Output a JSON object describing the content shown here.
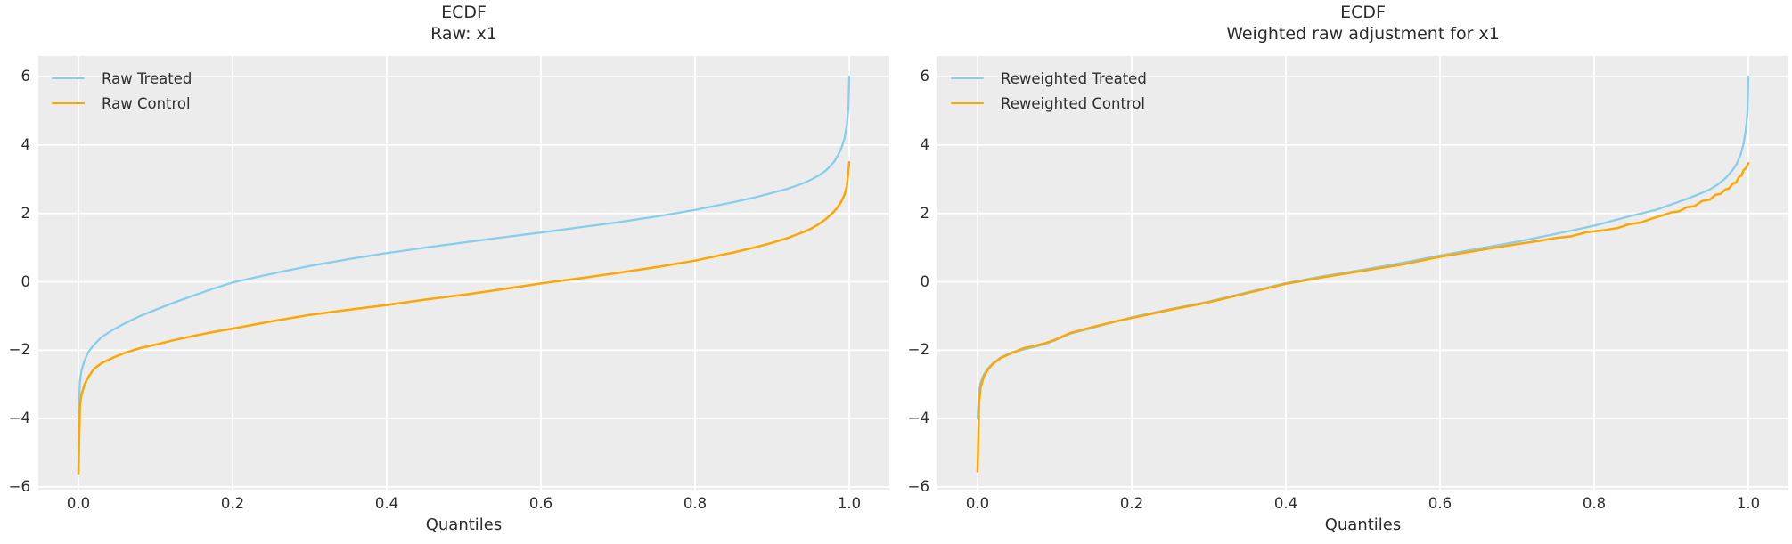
{
  "figure": {
    "background": "#ffffff",
    "axes_background": "#ececec",
    "grid_color": "#ffffff",
    "text_color": "#2e2e2e",
    "treated_color": "#87ceeb",
    "control_color": "#ffa500"
  },
  "chart_data": [
    {
      "type": "line",
      "title": "ECDF",
      "subtitle": "Raw: x1",
      "xlabel": "Quantiles",
      "grid": true,
      "legend_position": "upper left",
      "xlim": [
        -0.052,
        1.052
      ],
      "ylim": [
        -6.08,
        6.6
      ],
      "x_ticks": [
        {
          "value": 0.0,
          "label": "0.0"
        },
        {
          "value": 0.2,
          "label": "0.2"
        },
        {
          "value": 0.4,
          "label": "0.4"
        },
        {
          "value": 0.6,
          "label": "0.6"
        },
        {
          "value": 0.8,
          "label": "0.8"
        },
        {
          "value": 1.0,
          "label": "1.0"
        }
      ],
      "y_ticks": [
        {
          "value": 6,
          "label": "6"
        },
        {
          "value": 4,
          "label": "4"
        },
        {
          "value": 2,
          "label": "2"
        },
        {
          "value": 0,
          "label": "0"
        },
        {
          "value": -2,
          "label": "−2"
        },
        {
          "value": -4,
          "label": "−4"
        },
        {
          "value": -6,
          "label": "−6"
        }
      ],
      "series": [
        {
          "name": "Raw Treated",
          "color": "#87ceeb",
          "points": [
            [
              0,
              -4.0
            ],
            [
              0.002,
              -2.9
            ],
            [
              0.004,
              -2.6
            ],
            [
              0.008,
              -2.3
            ],
            [
              0.013,
              -2.05
            ],
            [
              0.02,
              -1.85
            ],
            [
              0.03,
              -1.62
            ],
            [
              0.045,
              -1.4
            ],
            [
              0.06,
              -1.22
            ],
            [
              0.08,
              -1.0
            ],
            [
              0.1,
              -0.82
            ],
            [
              0.125,
              -0.6
            ],
            [
              0.15,
              -0.4
            ],
            [
              0.175,
              -0.2
            ],
            [
              0.2,
              -0.02
            ],
            [
              0.23,
              0.13
            ],
            [
              0.26,
              0.28
            ],
            [
              0.3,
              0.46
            ],
            [
              0.35,
              0.66
            ],
            [
              0.4,
              0.84
            ],
            [
              0.45,
              1.0
            ],
            [
              0.5,
              1.15
            ],
            [
              0.55,
              1.3
            ],
            [
              0.6,
              1.44
            ],
            [
              0.65,
              1.59
            ],
            [
              0.7,
              1.74
            ],
            [
              0.75,
              1.91
            ],
            [
              0.8,
              2.1
            ],
            [
              0.85,
              2.33
            ],
            [
              0.88,
              2.48
            ],
            [
              0.9,
              2.6
            ],
            [
              0.92,
              2.72
            ],
            [
              0.94,
              2.88
            ],
            [
              0.95,
              2.98
            ],
            [
              0.96,
              3.1
            ],
            [
              0.97,
              3.26
            ],
            [
              0.98,
              3.5
            ],
            [
              0.985,
              3.68
            ],
            [
              0.99,
              3.92
            ],
            [
              0.994,
              4.2
            ],
            [
              0.997,
              4.6
            ],
            [
              0.999,
              5.1
            ],
            [
              1.0,
              6.0
            ]
          ]
        },
        {
          "name": "Raw Control",
          "color": "#ffa500",
          "points": [
            [
              0,
              -5.6
            ],
            [
              0.002,
              -3.6
            ],
            [
              0.004,
              -3.3
            ],
            [
              0.008,
              -3.0
            ],
            [
              0.013,
              -2.78
            ],
            [
              0.02,
              -2.55
            ],
            [
              0.03,
              -2.38
            ],
            [
              0.045,
              -2.22
            ],
            [
              0.06,
              -2.08
            ],
            [
              0.08,
              -1.94
            ],
            [
              0.1,
              -1.84
            ],
            [
              0.125,
              -1.7
            ],
            [
              0.15,
              -1.58
            ],
            [
              0.175,
              -1.47
            ],
            [
              0.2,
              -1.37
            ],
            [
              0.25,
              -1.16
            ],
            [
              0.3,
              -0.97
            ],
            [
              0.35,
              -0.82
            ],
            [
              0.4,
              -0.68
            ],
            [
              0.45,
              -0.52
            ],
            [
              0.5,
              -0.38
            ],
            [
              0.55,
              -0.22
            ],
            [
              0.6,
              -0.05
            ],
            [
              0.65,
              0.1
            ],
            [
              0.7,
              0.26
            ],
            [
              0.75,
              0.43
            ],
            [
              0.8,
              0.62
            ],
            [
              0.85,
              0.86
            ],
            [
              0.88,
              1.02
            ],
            [
              0.9,
              1.14
            ],
            [
              0.92,
              1.28
            ],
            [
              0.94,
              1.45
            ],
            [
              0.95,
              1.55
            ],
            [
              0.96,
              1.68
            ],
            [
              0.97,
              1.84
            ],
            [
              0.98,
              2.05
            ],
            [
              0.985,
              2.18
            ],
            [
              0.99,
              2.36
            ],
            [
              0.994,
              2.55
            ],
            [
              0.997,
              2.8
            ],
            [
              1.0,
              3.5
            ]
          ]
        }
      ]
    },
    {
      "type": "line",
      "title": "ECDF",
      "subtitle": "Weighted raw adjustment for x1",
      "xlabel": "Quantiles",
      "grid": true,
      "legend_position": "upper left",
      "xlim": [
        -0.052,
        1.052
      ],
      "ylim": [
        -6.08,
        6.6
      ],
      "x_ticks": [
        {
          "value": 0.0,
          "label": "0.0"
        },
        {
          "value": 0.2,
          "label": "0.2"
        },
        {
          "value": 0.4,
          "label": "0.4"
        },
        {
          "value": 0.6,
          "label": "0.6"
        },
        {
          "value": 0.8,
          "label": "0.8"
        },
        {
          "value": 1.0,
          "label": "1.0"
        }
      ],
      "y_ticks": [
        {
          "value": 6,
          "label": "6"
        },
        {
          "value": 4,
          "label": "4"
        },
        {
          "value": 2,
          "label": "2"
        },
        {
          "value": 0,
          "label": "0"
        },
        {
          "value": -2,
          "label": "−2"
        },
        {
          "value": -4,
          "label": "−4"
        },
        {
          "value": -6,
          "label": "−6"
        }
      ],
      "series": [
        {
          "name": "Reweighted Treated",
          "color": "#87ceeb",
          "points": [
            [
              0,
              -4.0
            ],
            [
              0.002,
              -3.2
            ],
            [
              0.004,
              -2.95
            ],
            [
              0.008,
              -2.72
            ],
            [
              0.013,
              -2.55
            ],
            [
              0.02,
              -2.38
            ],
            [
              0.03,
              -2.22
            ],
            [
              0.045,
              -2.06
            ],
            [
              0.06,
              -1.98
            ],
            [
              0.075,
              -1.9
            ],
            [
              0.09,
              -1.8
            ],
            [
              0.1,
              -1.72
            ],
            [
              0.12,
              -1.52
            ],
            [
              0.15,
              -1.34
            ],
            [
              0.18,
              -1.16
            ],
            [
              0.2,
              -1.04
            ],
            [
              0.25,
              -0.8
            ],
            [
              0.3,
              -0.58
            ],
            [
              0.35,
              -0.31
            ],
            [
              0.4,
              -0.04
            ],
            [
              0.45,
              0.17
            ],
            [
              0.5,
              0.35
            ],
            [
              0.55,
              0.55
            ],
            [
              0.6,
              0.77
            ],
            [
              0.65,
              0.97
            ],
            [
              0.7,
              1.17
            ],
            [
              0.75,
              1.4
            ],
            [
              0.8,
              1.64
            ],
            [
              0.85,
              1.94
            ],
            [
              0.88,
              2.1
            ],
            [
              0.9,
              2.26
            ],
            [
              0.92,
              2.42
            ],
            [
              0.94,
              2.6
            ],
            [
              0.95,
              2.7
            ],
            [
              0.96,
              2.84
            ],
            [
              0.97,
              3.02
            ],
            [
              0.98,
              3.28
            ],
            [
              0.985,
              3.45
            ],
            [
              0.99,
              3.72
            ],
            [
              0.994,
              4.05
            ],
            [
              0.997,
              4.5
            ],
            [
              0.999,
              5.0
            ],
            [
              1.0,
              6.0
            ]
          ]
        },
        {
          "name": "Reweighted Control",
          "color": "#ffa500",
          "points": [
            [
              0,
              -5.55
            ],
            [
              0.002,
              -3.55
            ],
            [
              0.004,
              -3.1
            ],
            [
              0.008,
              -2.78
            ],
            [
              0.013,
              -2.58
            ],
            [
              0.02,
              -2.4
            ],
            [
              0.03,
              -2.23
            ],
            [
              0.045,
              -2.08
            ],
            [
              0.06,
              -1.94
            ],
            [
              0.075,
              -1.87
            ],
            [
              0.09,
              -1.78
            ],
            [
              0.1,
              -1.7
            ],
            [
              0.12,
              -1.5
            ],
            [
              0.15,
              -1.32
            ],
            [
              0.18,
              -1.15
            ],
            [
              0.2,
              -1.06
            ],
            [
              0.25,
              -0.82
            ],
            [
              0.3,
              -0.6
            ],
            [
              0.35,
              -0.33
            ],
            [
              0.4,
              -0.06
            ],
            [
              0.45,
              0.14
            ],
            [
              0.5,
              0.32
            ],
            [
              0.55,
              0.5
            ],
            [
              0.6,
              0.73
            ],
            [
              0.65,
              0.92
            ],
            [
              0.7,
              1.1
            ],
            [
              0.73,
              1.2
            ],
            [
              0.75,
              1.28
            ],
            [
              0.77,
              1.33
            ],
            [
              0.79,
              1.45
            ],
            [
              0.81,
              1.5
            ],
            [
              0.83,
              1.57
            ],
            [
              0.845,
              1.68
            ],
            [
              0.86,
              1.73
            ],
            [
              0.875,
              1.85
            ],
            [
              0.89,
              1.95
            ],
            [
              0.9,
              2.03
            ],
            [
              0.91,
              2.06
            ],
            [
              0.92,
              2.18
            ],
            [
              0.93,
              2.21
            ],
            [
              0.94,
              2.36
            ],
            [
              0.95,
              2.4
            ],
            [
              0.957,
              2.54
            ],
            [
              0.964,
              2.57
            ],
            [
              0.97,
              2.7
            ],
            [
              0.975,
              2.73
            ],
            [
              0.98,
              2.88
            ],
            [
              0.984,
              2.9
            ],
            [
              0.988,
              3.07
            ],
            [
              0.991,
              3.1
            ],
            [
              0.994,
              3.27
            ],
            [
              0.996,
              3.3
            ],
            [
              0.998,
              3.38
            ],
            [
              1.0,
              3.47
            ]
          ]
        }
      ]
    }
  ]
}
